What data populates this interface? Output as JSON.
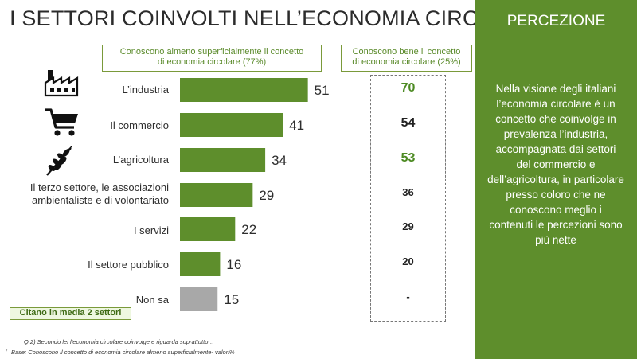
{
  "title": "I SETTORI COINVOLTI NELL’ECONOMIA CIRCOLARE",
  "header_left_line1": "Conoscono almeno superficialmente il concetto",
  "header_left_line2": "di economia circolare (77%)",
  "header_right_line1": "Conoscono bene il concetto",
  "header_right_line2": "di economia circolare (25%)",
  "panel_title": "PERCEZIONE",
  "panel_text": "Nella visione degli italiani l’economia circolare è  un concetto che coinvolge in prevalenza l’industria, accompagnata dai settori del commercio e dell’agricoltura, in particolare presso coloro che ne conoscono meglio i contenuti le percezioni sono più nette",
  "footer_badge": "Citano in media 2 settori",
  "note_question": "Q.2) Secondo lei l’economia circolare coinvolge e riguarda soprattutto…",
  "note_base": "Base: Conoscono il concetto di economia circolare almeno superficialmente- valori%",
  "page_number": "7",
  "icons": [
    "factory-icon",
    "shopping-cart-icon",
    "wheat-icon"
  ],
  "colors": {
    "bar": "#5e8e2c",
    "bar_na": "#a8a8a8",
    "highlight_value": "#4c8a22",
    "panel": "#5e8e2c"
  },
  "chart_data": {
    "type": "bar",
    "orientation": "horizontal",
    "categories": [
      "L’industria",
      "Il commercio",
      "L’agricoltura",
      "Il terzo settore, le associazioni ambientaliste e di volontariato",
      "I servizi",
      "Il settore pubblico",
      "Non sa"
    ],
    "series": [
      {
        "name": "Conoscono almeno superficialmente il concetto di economia circolare (77%)",
        "values": [
          51,
          41,
          34,
          29,
          22,
          16,
          15
        ]
      },
      {
        "name": "Conoscono bene il concetto di economia circolare (25%)",
        "values": [
          "70",
          "54",
          "53",
          "36",
          "29",
          "20",
          "-"
        ]
      }
    ],
    "highlighted_right_values": [
      0,
      2
    ],
    "grid": false,
    "legend": "none"
  }
}
